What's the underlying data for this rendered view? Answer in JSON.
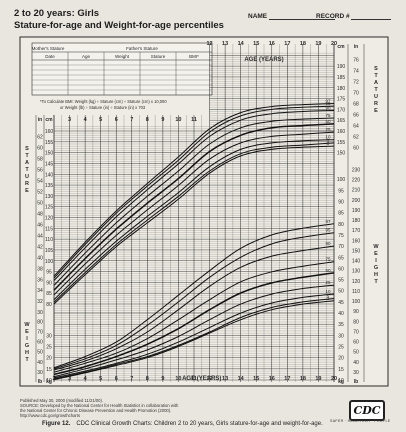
{
  "header": {
    "title_line1": "2 to 20 years: Girls",
    "title_line2": "Stature-for-age and Weight-for-age percentiles",
    "name_label": "NAME",
    "record_label": "RECORD #"
  },
  "record_table": {
    "top_labels": [
      "Mother's Stature",
      "Father's Stature"
    ],
    "columns": [
      "Date",
      "Age",
      "Weight",
      "Stature",
      "BMI*"
    ]
  },
  "bmi_note": {
    "line1": "*To Calculate BMI: Weight (kg) ÷ Stature (cm) ÷ Stature (cm) x 10,000",
    "line2": "or Weight (lb) ÷ Stature (in) ÷ Stature (in) x 703"
  },
  "chart_data": {
    "type": "line",
    "xlabel": "AGE (YEARS)",
    "x_ticks": [
      2,
      3,
      4,
      5,
      6,
      7,
      8,
      9,
      10,
      11,
      12,
      13,
      14,
      15,
      16,
      17,
      18,
      19,
      20
    ],
    "xlim": [
      2,
      20
    ],
    "stature_label": "STATURE",
    "weight_label": "WEIGHT",
    "cm_label": "cm",
    "in_label": "in",
    "kg_label": "kg",
    "lb_label": "lb",
    "stature_left_cm_ticks": [
      80,
      85,
      90,
      95,
      100,
      105,
      110,
      115,
      120,
      125,
      130,
      135,
      140,
      145,
      150,
      155,
      160
    ],
    "stature_left_in_ticks": [
      30,
      32,
      34,
      36,
      38,
      40,
      42,
      44,
      46,
      48,
      50,
      52,
      54,
      56,
      58,
      60,
      62
    ],
    "stature_right_cm_ticks": [
      150,
      155,
      160,
      165,
      170,
      175,
      180,
      185,
      190
    ],
    "stature_right_in_ticks": [
      60,
      62,
      64,
      66,
      68,
      70,
      72,
      74,
      76
    ],
    "weight_left_kg_ticks": [
      10,
      15,
      20,
      25,
      30
    ],
    "weight_left_lb_ticks": [
      30,
      40,
      50,
      60,
      70,
      80
    ],
    "weight_right_kg_ticks": [
      10,
      15,
      20,
      25,
      30,
      35,
      40,
      45,
      50,
      55,
      60,
      65,
      70,
      75,
      80,
      85,
      90,
      95,
      100,
      105
    ],
    "weight_right_lb_ticks": [
      30,
      40,
      50,
      60,
      70,
      80,
      90,
      100,
      110,
      120,
      130,
      140,
      150,
      160,
      170,
      180,
      190,
      200,
      210,
      220,
      230
    ],
    "stature_series": [
      {
        "name": "97",
        "x": [
          2,
          4,
          6,
          8,
          10,
          12,
          14,
          16,
          18,
          20
        ],
        "y": [
          92.9,
          108.5,
          123.0,
          135.7,
          148.0,
          161.0,
          168.5,
          171.3,
          172.2,
          172.7
        ]
      },
      {
        "name": "95",
        "x": [
          2,
          4,
          6,
          8,
          10,
          12,
          14,
          16,
          18,
          20
        ],
        "y": [
          92.0,
          107.5,
          122.0,
          134.5,
          146.5,
          159.5,
          167.0,
          170.0,
          171.0,
          171.5
        ]
      },
      {
        "name": "90",
        "x": [
          2,
          4,
          6,
          8,
          10,
          12,
          14,
          16,
          18,
          20
        ],
        "y": [
          90.8,
          106.0,
          120.3,
          132.8,
          144.8,
          157.5,
          165.0,
          168.0,
          169.0,
          169.5
        ]
      },
      {
        "name": "75",
        "x": [
          2,
          4,
          6,
          8,
          10,
          12,
          14,
          16,
          18,
          20
        ],
        "y": [
          88.6,
          103.5,
          117.5,
          129.8,
          141.5,
          154.0,
          161.5,
          164.5,
          165.5,
          166.0
        ]
      },
      {
        "name": "50",
        "x": [
          2,
          4,
          6,
          8,
          10,
          12,
          14,
          16,
          18,
          20
        ],
        "y": [
          86.4,
          101.0,
          114.6,
          126.6,
          138.0,
          150.5,
          158.0,
          161.5,
          162.5,
          163.3
        ]
      },
      {
        "name": "25",
        "x": [
          2,
          4,
          6,
          8,
          10,
          12,
          14,
          16,
          18,
          20
        ],
        "y": [
          84.2,
          98.5,
          111.7,
          123.5,
          134.8,
          147.0,
          154.5,
          157.5,
          158.5,
          159.5
        ]
      },
      {
        "name": "10",
        "x": [
          2,
          4,
          6,
          8,
          10,
          12,
          14,
          16,
          18,
          20
        ],
        "y": [
          82.0,
          96.0,
          109.0,
          120.5,
          131.5,
          143.5,
          151.5,
          154.5,
          155.5,
          156.0
        ]
      },
      {
        "name": "5",
        "x": [
          2,
          4,
          6,
          8,
          10,
          12,
          14,
          16,
          18,
          20
        ],
        "y": [
          80.9,
          94.5,
          107.5,
          118.8,
          129.8,
          141.5,
          149.5,
          152.5,
          153.5,
          154.5
        ]
      },
      {
        "name": "3",
        "x": [
          2,
          4,
          6,
          8,
          10,
          12,
          14,
          16,
          18,
          20
        ],
        "y": [
          80.0,
          93.5,
          106.5,
          117.5,
          128.5,
          140.5,
          148.5,
          151.5,
          152.5,
          153.0
        ]
      }
    ],
    "weight_series": [
      {
        "name": "97",
        "x": [
          2,
          4,
          6,
          8,
          10,
          12,
          14,
          16,
          18,
          20
        ],
        "y": [
          15.5,
          20.5,
          27.0,
          37.0,
          48.0,
          59.0,
          69.0,
          75.0,
          78.0,
          80.0
        ]
      },
      {
        "name": "95",
        "x": [
          2,
          4,
          6,
          8,
          10,
          12,
          14,
          16,
          18,
          20
        ],
        "y": [
          15.0,
          19.5,
          25.5,
          34.5,
          45.0,
          56.0,
          65.0,
          71.0,
          74.0,
          76.0
        ]
      },
      {
        "name": "90",
        "x": [
          2,
          4,
          6,
          8,
          10,
          12,
          14,
          16,
          18,
          20
        ],
        "y": [
          14.5,
          18.5,
          24.0,
          31.5,
          41.5,
          52.0,
          60.5,
          65.5,
          68.0,
          70.0
        ]
      },
      {
        "name": "75",
        "x": [
          2,
          4,
          6,
          8,
          10,
          12,
          14,
          16,
          18,
          20
        ],
        "y": [
          13.5,
          17.5,
          22.0,
          28.5,
          37.0,
          46.0,
          54.0,
          58.5,
          61.0,
          63.0
        ]
      },
      {
        "name": "50",
        "x": [
          2,
          4,
          6,
          8,
          10,
          12,
          14,
          16,
          18,
          20
        ],
        "y": [
          12.5,
          16.0,
          20.5,
          26.0,
          33.0,
          41.5,
          49.0,
          53.5,
          56.0,
          58.0
        ]
      },
      {
        "name": "25",
        "x": [
          2,
          4,
          6,
          8,
          10,
          12,
          14,
          16,
          18,
          20
        ],
        "y": [
          11.5,
          15.0,
          19.0,
          23.5,
          29.5,
          37.0,
          44.0,
          48.5,
          51.0,
          52.5
        ]
      },
      {
        "name": "10",
        "x": [
          2,
          4,
          6,
          8,
          10,
          12,
          14,
          16,
          18,
          20
        ],
        "y": [
          11.0,
          14.0,
          17.5,
          21.5,
          27.0,
          33.5,
          40.0,
          44.5,
          47.0,
          48.5
        ]
      },
      {
        "name": "5",
        "x": [
          2,
          4,
          6,
          8,
          10,
          12,
          14,
          16,
          18,
          20
        ],
        "y": [
          10.5,
          13.5,
          17.0,
          20.5,
          25.5,
          31.5,
          38.0,
          42.5,
          45.0,
          46.5
        ]
      },
      {
        "name": "3",
        "x": [
          2,
          4,
          6,
          8,
          10,
          12,
          14,
          16,
          18,
          20
        ],
        "y": [
          10.2,
          13.2,
          16.5,
          20.0,
          25.0,
          31.0,
          37.0,
          41.5,
          44.0,
          45.5
        ]
      }
    ]
  },
  "footer": {
    "published": "Published May 30, 2000 (modified 11/21/00).",
    "source": "SOURCE: Developed by the National Center for Health Statistics in collaboration with",
    "source2": "the National Center for Chronic Disease Prevention and Health Promotion (2000).",
    "url": "http://www.cdc.gov/growthcharts",
    "logo": "CDC",
    "tagline": "SAFER · HEALTHIER · PEOPLE",
    "figure_label": "Figure 12.",
    "figure_caption": "CDC Clinical Growth Charts: Children 2 to 20 years, Girls stature-for-age and weight-for-age."
  }
}
